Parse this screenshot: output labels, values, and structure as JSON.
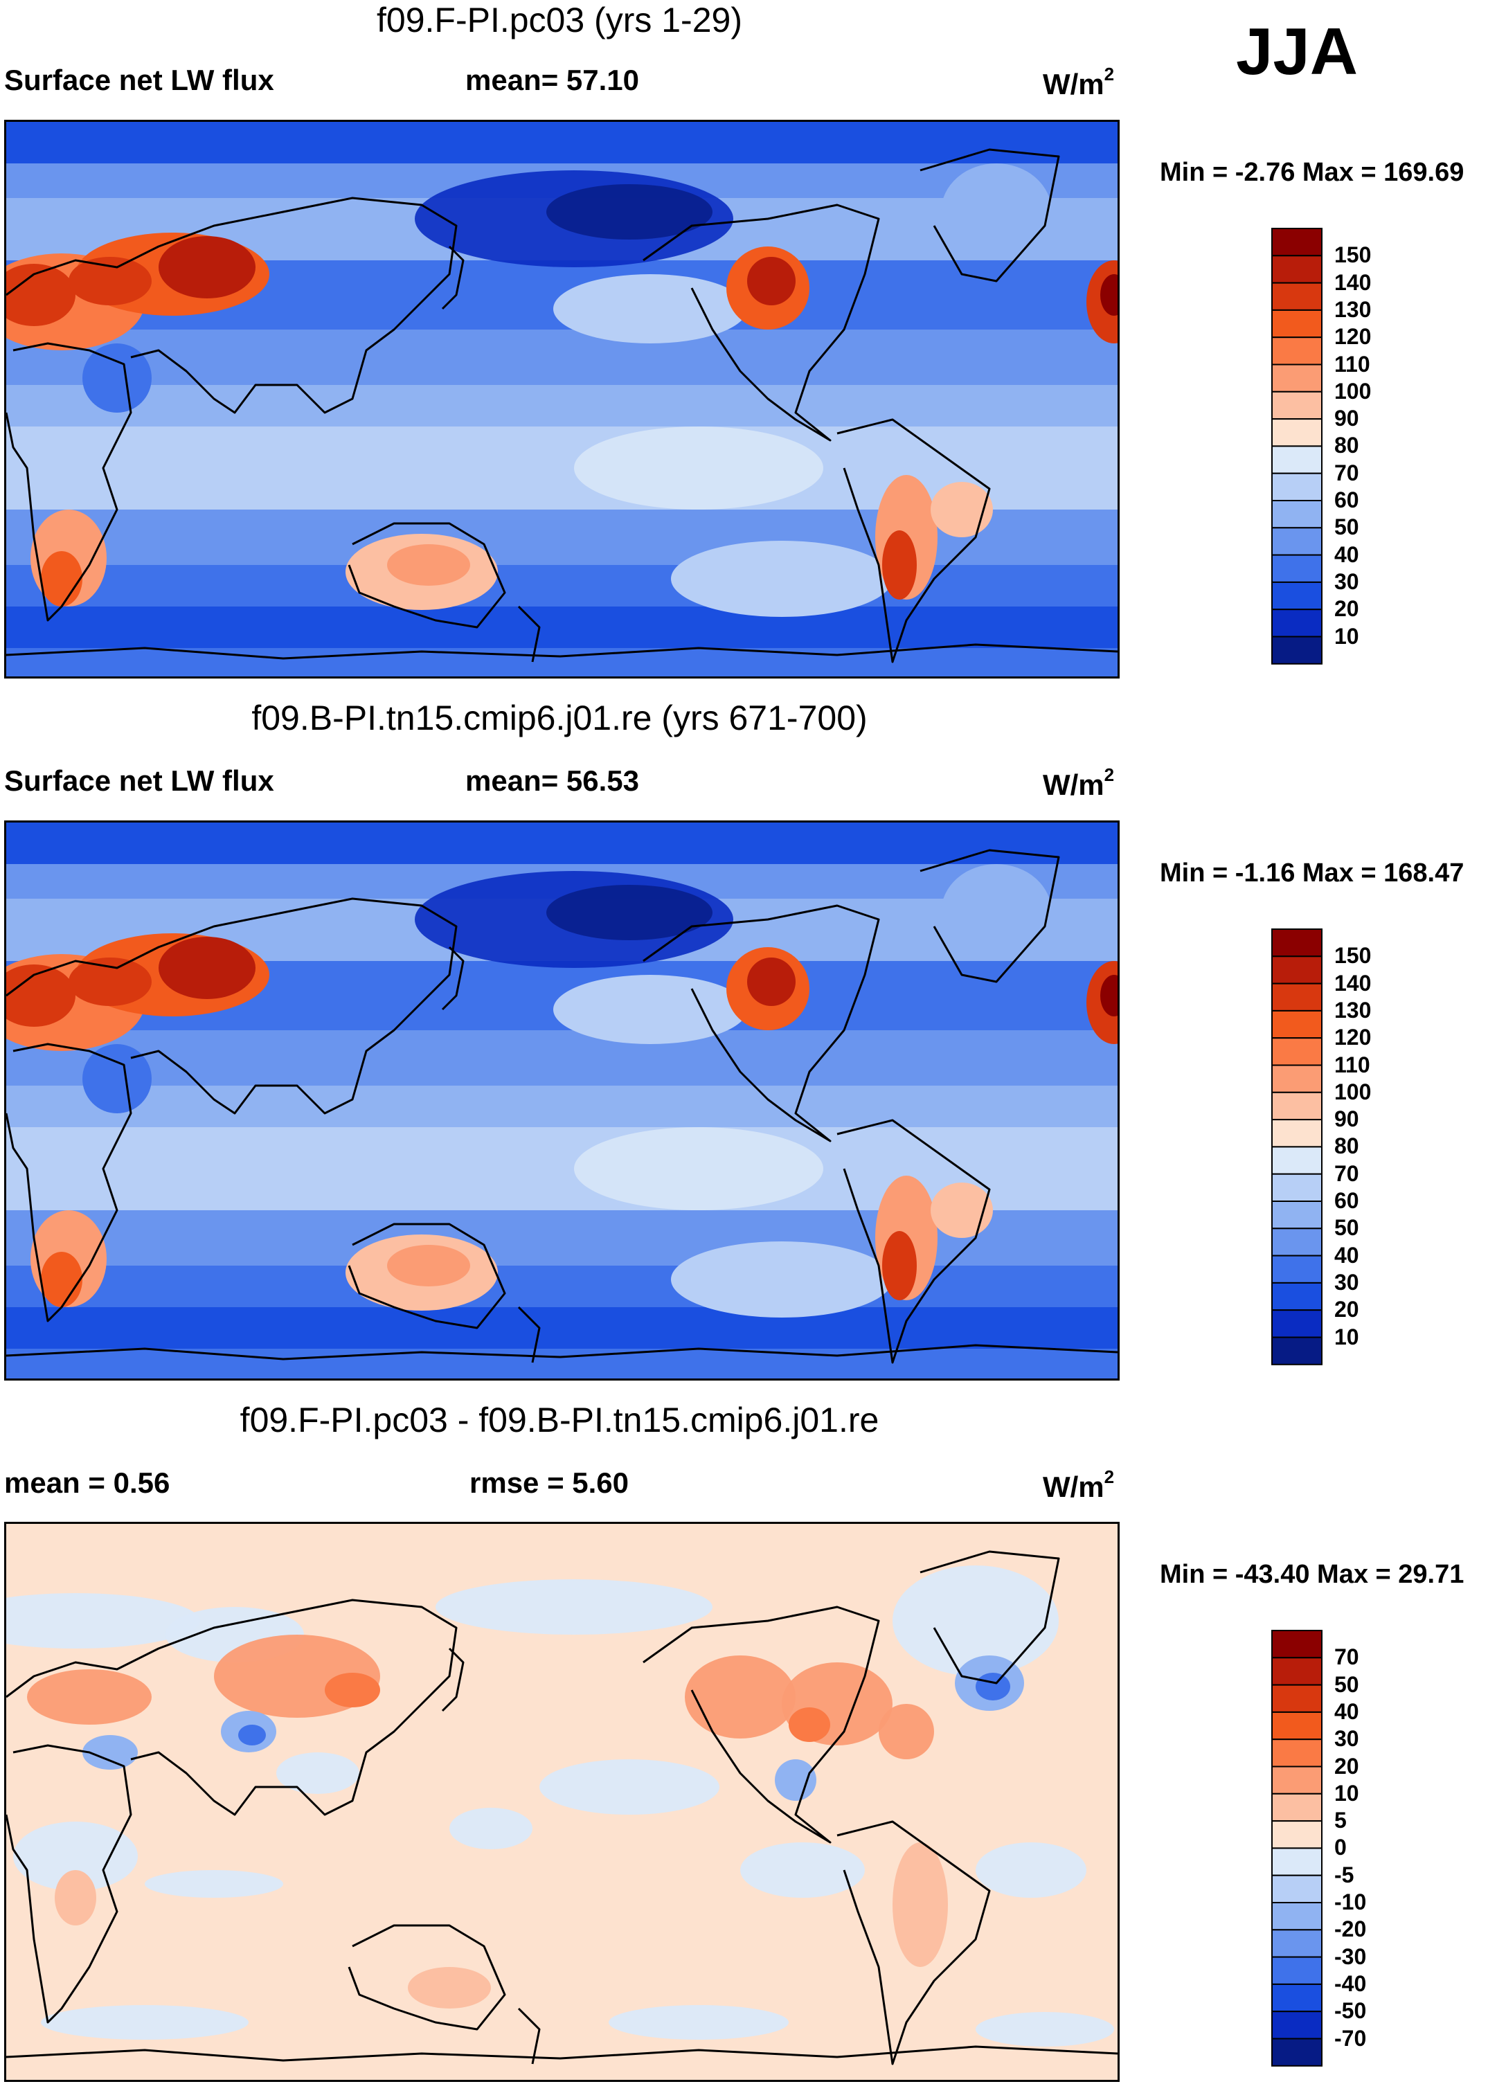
{
  "season": "JJA",
  "panels": [
    {
      "title": "f09.F-PI.pc03 (yrs 1-29)",
      "left_label": "Surface net LW flux",
      "center_label": "mean=  57.10",
      "units": "W/m",
      "units_sup": "2",
      "minmax": "Min =  -2.76 Max = 169.69",
      "colorbar": {
        "labels": [
          "150",
          "140",
          "130",
          "120",
          "110",
          "100",
          "90",
          "80",
          "70",
          "60",
          "50",
          "40",
          "30",
          "20",
          "10"
        ],
        "colors": [
          "#8b0000",
          "#b81d0a",
          "#d8380f",
          "#f25a1d",
          "#fa7a45",
          "#fb9c74",
          "#fcbfa2",
          "#fde2cf",
          "#dbe9f9",
          "#b7cff6",
          "#90b3f2",
          "#6a95ee",
          "#3f72ea",
          "#1a4fe0",
          "#0a2cc2",
          "#061b85"
        ]
      },
      "field": {
        "mode": "flux"
      }
    },
    {
      "title": "f09.B-PI.tn15.cmip6.j01.re (yrs 671-700)",
      "left_label": "Surface net LW flux",
      "center_label": "mean=  56.53",
      "units": "W/m",
      "units_sup": "2",
      "minmax": "Min =  -1.16 Max = 168.47",
      "colorbar": {
        "labels": [
          "150",
          "140",
          "130",
          "120",
          "110",
          "100",
          "90",
          "80",
          "70",
          "60",
          "50",
          "40",
          "30",
          "20",
          "10"
        ],
        "colors": [
          "#8b0000",
          "#b81d0a",
          "#d8380f",
          "#f25a1d",
          "#fa7a45",
          "#fb9c74",
          "#fcbfa2",
          "#fde2cf",
          "#dbe9f9",
          "#b7cff6",
          "#90b3f2",
          "#6a95ee",
          "#3f72ea",
          "#1a4fe0",
          "#0a2cc2",
          "#061b85"
        ]
      },
      "field": {
        "mode": "flux"
      }
    },
    {
      "title": "f09.F-PI.pc03 - f09.B-PI.tn15.cmip6.j01.re",
      "left_label": "mean =   0.56",
      "center_label": "rmse =    5.60",
      "units": "W/m",
      "units_sup": "2",
      "minmax": "Min = -43.40 Max =  29.71",
      "colorbar": {
        "labels": [
          "70",
          "50",
          "40",
          "30",
          "20",
          "10",
          "5",
          "0",
          "-5",
          "-10",
          "-20",
          "-30",
          "-40",
          "-50",
          "-70"
        ],
        "colors": [
          "#8b0000",
          "#b81d0a",
          "#d8380f",
          "#f25a1d",
          "#fa7a45",
          "#fb9c74",
          "#fcbfa2",
          "#fde2cf",
          "#dbe9f9",
          "#b7cff6",
          "#90b3f2",
          "#6a95ee",
          "#3f72ea",
          "#1a4fe0",
          "#0a2cc2",
          "#061b85"
        ]
      },
      "field": {
        "mode": "diff"
      }
    }
  ]
}
